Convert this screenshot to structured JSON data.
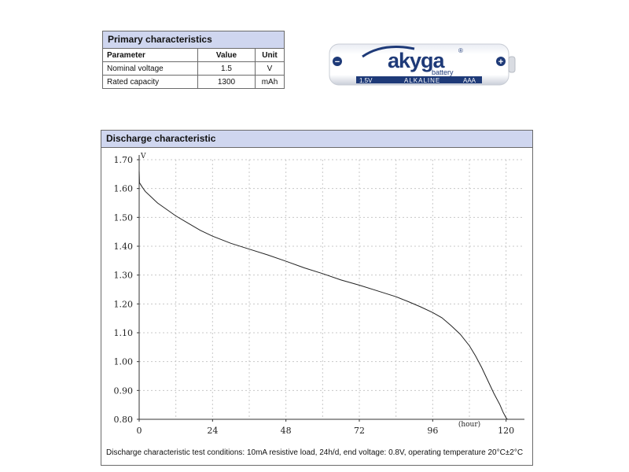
{
  "primary": {
    "title": "Primary characteristics",
    "headers": [
      "Parameter",
      "Value",
      "Unit"
    ],
    "rows": [
      {
        "param": "Nominal voltage",
        "value": "1.5",
        "unit": "V"
      },
      {
        "param": "Rated capacity",
        "value": "1300",
        "unit": "mAh"
      }
    ]
  },
  "battery": {
    "brand": "akyga",
    "sub": "battery",
    "voltage": "1.5V",
    "type": "ALKALINE",
    "size": "AAA",
    "reg": "®",
    "minus": "−",
    "plus": "+",
    "colors": {
      "body": "#ffffff",
      "band": "#1e3a78",
      "logo": "#1e3a78"
    }
  },
  "discharge": {
    "title": "Discharge characteristic",
    "conditions": "Discharge characteristic test conditions: 10mA resistive load, 24h/d, end voltage: 0.8V, operating temperature 20°C±2°C"
  },
  "chart_data": {
    "type": "line",
    "title": "",
    "xlabel": "(hour)",
    "ylabel": "V",
    "xlim": [
      0,
      126
    ],
    "ylim": [
      0.8,
      1.7
    ],
    "xticks": [
      0,
      24,
      48,
      72,
      96,
      120
    ],
    "yticks": [
      0.8,
      0.9,
      1.0,
      1.1,
      1.2,
      1.3,
      1.4,
      1.5,
      1.6,
      1.7
    ],
    "ytick_labels": [
      "0.80",
      "0.90",
      "1.00",
      "1.10",
      "1.20",
      "1.30",
      "1.40",
      "1.50",
      "1.60",
      "1.70"
    ],
    "grid": true,
    "cutoff_line": 0.8,
    "series": [
      {
        "x": [
          0,
          0.1,
          1,
          2,
          4,
          6,
          8,
          10,
          12,
          16,
          20,
          24,
          30,
          36,
          42,
          48,
          54,
          60,
          66,
          72,
          78,
          84,
          88,
          92,
          96,
          99,
          102,
          105,
          108,
          110,
          112,
          114,
          116,
          118,
          119,
          120,
          120.4
        ],
        "y": [
          1.66,
          1.62,
          1.605,
          1.59,
          1.57,
          1.55,
          1.535,
          1.52,
          1.505,
          1.48,
          1.455,
          1.435,
          1.41,
          1.39,
          1.37,
          1.348,
          1.325,
          1.305,
          1.283,
          1.265,
          1.245,
          1.225,
          1.208,
          1.19,
          1.17,
          1.152,
          1.125,
          1.095,
          1.055,
          1.02,
          0.98,
          0.935,
          0.89,
          0.85,
          0.825,
          0.805,
          0.8
        ]
      }
    ],
    "colors": {
      "line": "#222222",
      "grid": "#c8c8c8",
      "axis": "#333333"
    }
  }
}
